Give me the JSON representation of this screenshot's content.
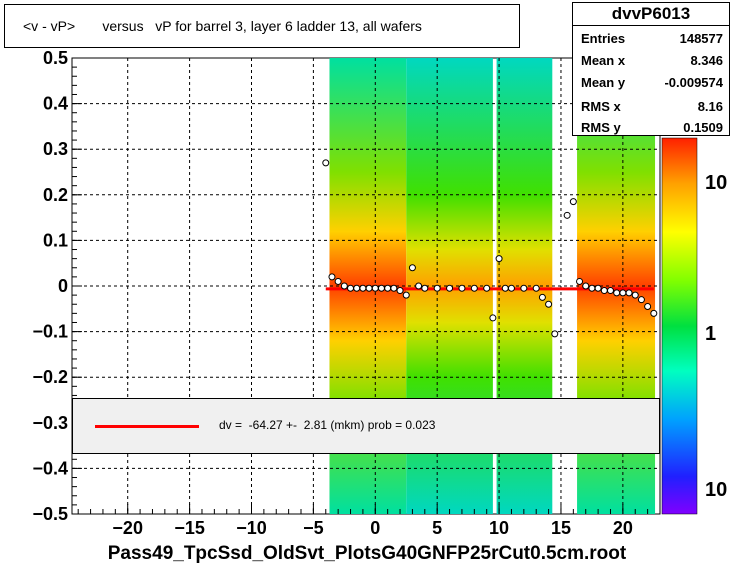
{
  "title": "<v - vP>       versus   vP for barrel 3, layer 6 ladder 13, all wafers",
  "xlabel": "Pass49_TpcSsd_OldSvt_PlotsG40GNFP25rCut0.5cm.root",
  "stats": {
    "name": "dvvP6013",
    "rows": [
      {
        "key": "Entries",
        "value": "148577"
      },
      {
        "key": "Mean x",
        "value": "8.346"
      },
      {
        "key": "Mean y",
        "value": "-0.009574"
      },
      {
        "key": "RMS x",
        "value": "8.16"
      },
      {
        "key": "RMS y",
        "value": "0.1509"
      }
    ]
  },
  "fit": {
    "label": "dv =  -64.27 +-  2.81 (mkm) prob = 0.023",
    "line_color": "#ff0000"
  },
  "chart_data": {
    "type": "heatmap",
    "xlim": [
      -24.5,
      23
    ],
    "ylim": [
      -0.5,
      0.5
    ],
    "xticks": [
      -20,
      -15,
      -10,
      -5,
      0,
      5,
      10,
      15,
      20
    ],
    "yticks": [
      -0.5,
      -0.4,
      -0.3,
      -0.2,
      -0.1,
      0,
      0.1,
      0.2,
      0.3,
      0.4,
      0.5
    ],
    "xtick_labels": [
      "−20",
      "−15",
      "−10",
      "−5",
      "0",
      "5",
      "10",
      "15",
      "20"
    ],
    "ytick_labels": [
      "−0.5",
      "−0.4",
      "−0.3",
      "−0.2",
      "−0.1",
      "0",
      "0.1",
      "0.2",
      "0.3",
      "0.4",
      "0.5"
    ],
    "grid": true,
    "z_scale": "log",
    "z_tick_labels": [
      "10",
      "1",
      "10"
    ],
    "data_bands": [
      [
        -3.7,
        2.5
      ],
      [
        2.5,
        9.5
      ],
      [
        9.8,
        14.3
      ],
      [
        16.3,
        22.6
      ]
    ],
    "fit_line": {
      "x": [
        -4,
        22.5
      ],
      "y": [
        -0.0064,
        -0.0064
      ]
    },
    "profile_points": [
      {
        "x": -4.0,
        "y": 0.27
      },
      {
        "x": -3.5,
        "y": 0.02
      },
      {
        "x": -3.0,
        "y": 0.01
      },
      {
        "x": -2.5,
        "y": 0.0
      },
      {
        "x": -2.0,
        "y": -0.005
      },
      {
        "x": -1.5,
        "y": -0.005
      },
      {
        "x": -1.0,
        "y": -0.005
      },
      {
        "x": -0.5,
        "y": -0.005
      },
      {
        "x": 0.0,
        "y": -0.005
      },
      {
        "x": 0.5,
        "y": -0.005
      },
      {
        "x": 1.0,
        "y": -0.005
      },
      {
        "x": 1.5,
        "y": -0.005
      },
      {
        "x": 2.0,
        "y": -0.01
      },
      {
        "x": 2.5,
        "y": -0.02
      },
      {
        "x": 3.0,
        "y": 0.04
      },
      {
        "x": 3.5,
        "y": 0.0
      },
      {
        "x": 4.0,
        "y": -0.005
      },
      {
        "x": 5.0,
        "y": -0.005
      },
      {
        "x": 6.0,
        "y": -0.005
      },
      {
        "x": 7.0,
        "y": -0.005
      },
      {
        "x": 8.0,
        "y": -0.005
      },
      {
        "x": 9.0,
        "y": -0.005
      },
      {
        "x": 9.5,
        "y": -0.07
      },
      {
        "x": 10.0,
        "y": 0.06
      },
      {
        "x": 10.5,
        "y": -0.005
      },
      {
        "x": 11.0,
        "y": -0.005
      },
      {
        "x": 12.0,
        "y": -0.005
      },
      {
        "x": 13.0,
        "y": -0.005
      },
      {
        "x": 13.5,
        "y": -0.025
      },
      {
        "x": 14.0,
        "y": -0.04
      },
      {
        "x": 14.5,
        "y": -0.105
      },
      {
        "x": 15.5,
        "y": 0.155
      },
      {
        "x": 16.0,
        "y": 0.185
      },
      {
        "x": 16.5,
        "y": 0.01
      },
      {
        "x": 17.0,
        "y": 0.0
      },
      {
        "x": 17.5,
        "y": -0.005
      },
      {
        "x": 18.0,
        "y": -0.005
      },
      {
        "x": 18.5,
        "y": -0.01
      },
      {
        "x": 19.0,
        "y": -0.01
      },
      {
        "x": 19.5,
        "y": -0.015
      },
      {
        "x": 20.0,
        "y": -0.015
      },
      {
        "x": 20.5,
        "y": -0.015
      },
      {
        "x": 21.0,
        "y": -0.02
      },
      {
        "x": 21.5,
        "y": -0.03
      },
      {
        "x": 22.0,
        "y": -0.045
      },
      {
        "x": 22.5,
        "y": -0.06
      }
    ]
  }
}
